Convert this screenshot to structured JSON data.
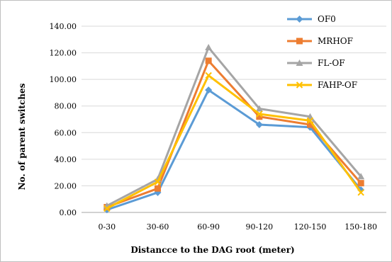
{
  "chart_data": {
    "type": "line",
    "title": "",
    "xlabel": "Distancce to the DAG root (meter)",
    "ylabel": "No. of parent switches",
    "categories": [
      "0-30",
      "30-60",
      "60-90",
      "90-120",
      "120-150",
      "150-180"
    ],
    "ylim": [
      0,
      140
    ],
    "yticks": [
      "0.00",
      "20.00",
      "40.00",
      "60.00",
      "80.00",
      "100.00",
      "120.00",
      "140.00"
    ],
    "grid": true,
    "legend_position": "top-right",
    "series": [
      {
        "name": "OF0",
        "color": "#5b9bd5",
        "marker": "diamond",
        "values": [
          2,
          15,
          92,
          66,
          64,
          17
        ]
      },
      {
        "name": "MRHOF",
        "color": "#ed7d31",
        "marker": "square",
        "values": [
          4,
          18,
          114,
          72,
          66,
          22
        ]
      },
      {
        "name": "FL-OF",
        "color": "#a5a5a5",
        "marker": "triangle",
        "values": [
          5,
          25,
          124,
          78,
          72,
          27
        ]
      },
      {
        "name": "FAHP-OF",
        "color": "#ffc000",
        "marker": "x",
        "values": [
          3,
          23,
          103,
          74,
          69,
          15
        ]
      }
    ]
  }
}
